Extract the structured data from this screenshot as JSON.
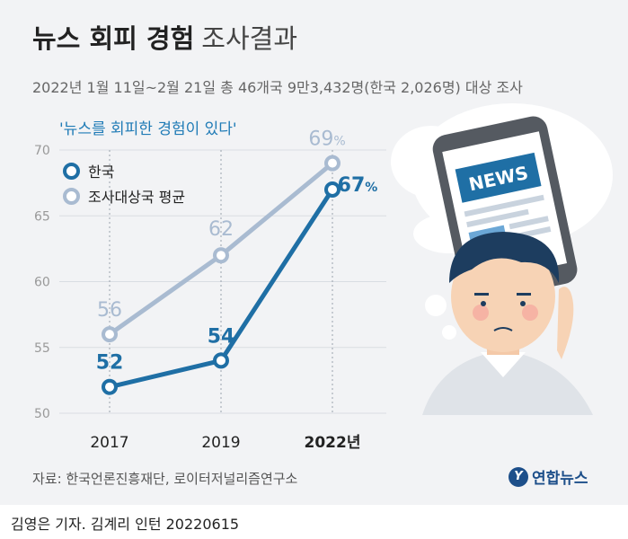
{
  "header": {
    "title_bold": "뉴스 회피 경험",
    "title_light": "조사결과",
    "subtitle": "2022년 1월 11일~2월 21일 총 46개국 9만3,432명(한국 2,026명) 대상 조사",
    "question": "'뉴스를 회피한 경험이 있다'"
  },
  "legend": {
    "korea": "한국",
    "avg": "조사대상국 평균"
  },
  "chart_data": {
    "type": "line",
    "categories": [
      "2017",
      "2019",
      "2022년"
    ],
    "series": [
      {
        "name": "조사대상국 평균",
        "values": [
          56,
          62,
          69
        ],
        "color": "#a9bbd1"
      },
      {
        "name": "한국",
        "values": [
          52,
          54,
          67
        ],
        "color": "#1f6fa5"
      }
    ],
    "y_ticks": [
      50,
      55,
      60,
      65,
      70
    ],
    "ylim": [
      50,
      70
    ],
    "percent_suffix": "%",
    "title": "뉴스 회피 경험 조사결과"
  },
  "illustration": {
    "phone_text": "NEWS"
  },
  "footer": {
    "source": "자료: 한국언론진흥재단, 로이터저널리즘연구소",
    "logo_text": "연합뉴스",
    "logo_mark": "Y",
    "byline": "김영은 기자. 김계리 인턴  20220615"
  },
  "colors": {
    "korea": "#1f6fa5",
    "avg": "#a9bbd1",
    "background": "#f2f3f5"
  }
}
